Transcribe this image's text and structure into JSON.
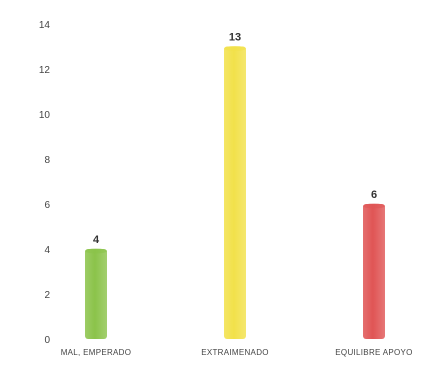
{
  "chart_data": {
    "type": "bar",
    "title": "",
    "xlabel": "",
    "ylabel": "",
    "categories": [
      "MAL, EMPERADO",
      "EXTRAIMENADO",
      "EQUILIBRE APOYO"
    ],
    "values": [
      4,
      13,
      6
    ],
    "data_labels": [
      "4",
      "13",
      "6"
    ],
    "colors": [
      "#8bc34a",
      "#f2e14a",
      "#e05555"
    ],
    "ylim": [
      0,
      14
    ],
    "yticks": [
      "0",
      "2",
      "4",
      "6",
      "8",
      "10",
      "12",
      "14"
    ],
    "grid": false,
    "legend": "none"
  }
}
